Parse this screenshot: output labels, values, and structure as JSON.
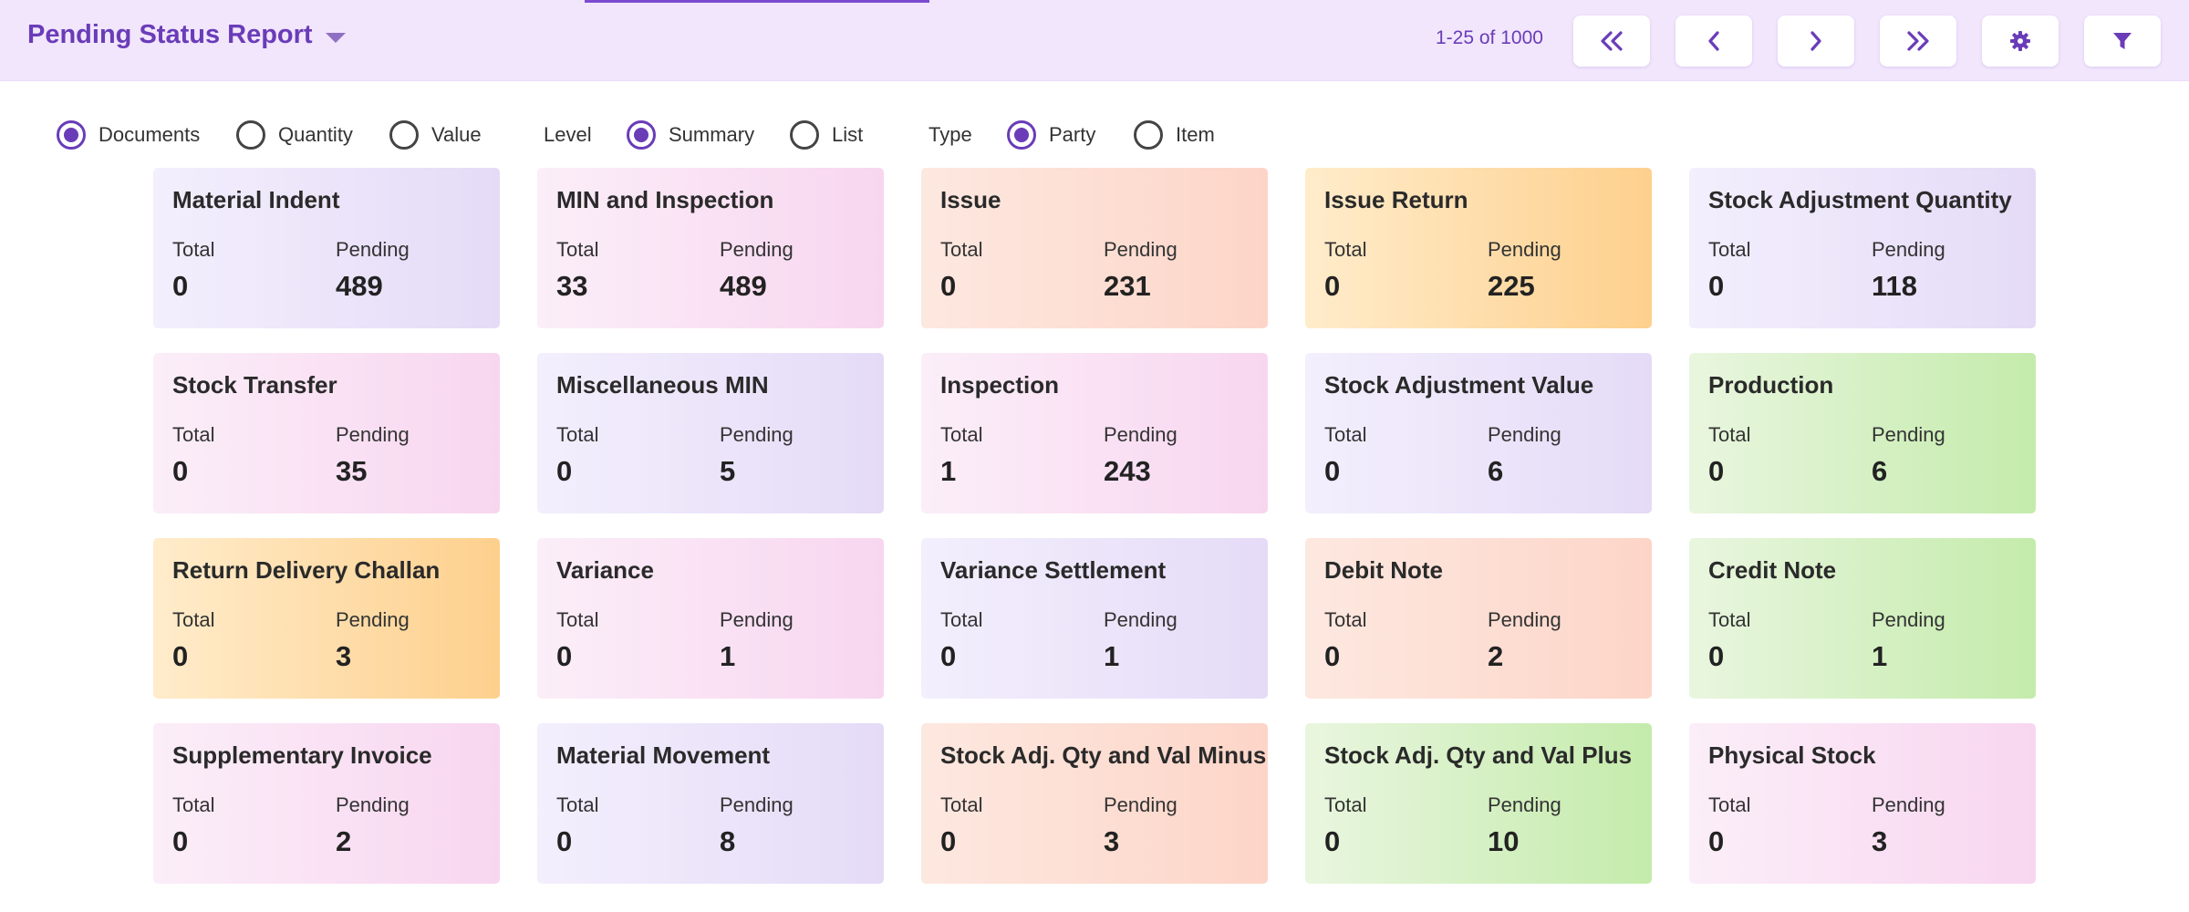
{
  "header": {
    "title": "Pending Status Report",
    "paging": "1-25 of 1000",
    "buttons": [
      {
        "name": "first-page-button",
        "icon": "double-chevron-left-icon"
      },
      {
        "name": "previous-page-button",
        "icon": "chevron-left-icon"
      },
      {
        "name": "next-page-button",
        "icon": "chevron-right-icon"
      },
      {
        "name": "last-page-button",
        "icon": "double-chevron-right-icon"
      },
      {
        "name": "settings-button",
        "icon": "gear-icon"
      },
      {
        "name": "filter-button",
        "icon": "filter-icon"
      }
    ]
  },
  "options": {
    "measure": [
      {
        "label": "Documents",
        "selected": true
      },
      {
        "label": "Quantity",
        "selected": false
      },
      {
        "label": "Value",
        "selected": false
      }
    ],
    "level_label": "Level",
    "level": [
      {
        "label": "Summary",
        "selected": true
      },
      {
        "label": "List",
        "selected": false
      }
    ],
    "type_label": "Type",
    "type": [
      {
        "label": "Party",
        "selected": true
      },
      {
        "label": "Item",
        "selected": false
      }
    ]
  },
  "card_labels": {
    "total": "Total",
    "pending": "Pending"
  },
  "cards": [
    {
      "title": "Material Indent",
      "total": "0",
      "pending": "489",
      "color": "purple"
    },
    {
      "title": "MIN and Inspection",
      "total": "33",
      "pending": "489",
      "color": "pink"
    },
    {
      "title": "Issue",
      "total": "0",
      "pending": "231",
      "color": "salmon"
    },
    {
      "title": "Issue Return",
      "total": "0",
      "pending": "225",
      "color": "orange"
    },
    {
      "title": "Stock Adjustment Quantity",
      "total": "0",
      "pending": "118",
      "color": "purple"
    },
    {
      "title": "Stock Transfer",
      "total": "0",
      "pending": "35",
      "color": "pink"
    },
    {
      "title": "Miscellaneous MIN",
      "total": "0",
      "pending": "5",
      "color": "purple"
    },
    {
      "title": "Inspection",
      "total": "1",
      "pending": "243",
      "color": "pink"
    },
    {
      "title": "Stock Adjustment Value",
      "total": "0",
      "pending": "6",
      "color": "purple"
    },
    {
      "title": "Production",
      "total": "0",
      "pending": "6",
      "color": "green"
    },
    {
      "title": "Return Delivery Challan",
      "total": "0",
      "pending": "3",
      "color": "orange"
    },
    {
      "title": "Variance",
      "total": "0",
      "pending": "1",
      "color": "pink"
    },
    {
      "title": "Variance Settlement",
      "total": "0",
      "pending": "1",
      "color": "purple"
    },
    {
      "title": "Debit Note",
      "total": "0",
      "pending": "2",
      "color": "salmon"
    },
    {
      "title": "Credit Note",
      "total": "0",
      "pending": "1",
      "color": "green"
    },
    {
      "title": "Supplementary Invoice",
      "total": "0",
      "pending": "2",
      "color": "pink"
    },
    {
      "title": "Material Movement",
      "total": "0",
      "pending": "8",
      "color": "purple"
    },
    {
      "title": "Stock Adj. Qty and Val Minus",
      "total": "0",
      "pending": "3",
      "color": "salmon"
    },
    {
      "title": "Stock Adj. Qty and Val Plus",
      "total": "0",
      "pending": "10",
      "color": "green"
    },
    {
      "title": "Physical Stock",
      "total": "0",
      "pending": "3",
      "color": "pink"
    }
  ]
}
